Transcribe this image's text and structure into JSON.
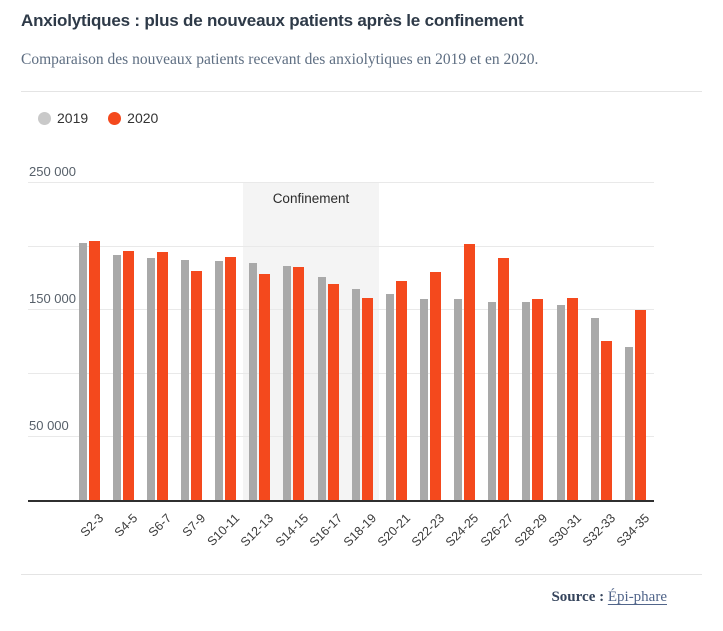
{
  "header": {
    "title": "Anxiolytiques : plus de nouveaux patients après le confinement",
    "subtitle": "Comparaison des nouveaux patients recevant des anxiolytiques en 2019 et en 2020."
  },
  "legend": [
    {
      "label": "2019",
      "color": "#c9c9c9"
    },
    {
      "label": "2020",
      "color": "#f4491d"
    }
  ],
  "chart_data": {
    "type": "bar",
    "title": "Anxiolytiques : plus de nouveaux patients après le confinement",
    "xlabel": "",
    "ylabel": "",
    "ylim": [
      0,
      250000
    ],
    "grid": true,
    "legend_position": "top-left",
    "categories": [
      "S2-3",
      "S4-5",
      "S6-7",
      "S7-9",
      "S10-11",
      "S12-13",
      "S14-15",
      "S16-17",
      "S18-19",
      "S20-21",
      "S22-23",
      "S24-25",
      "S26-27",
      "S28-29",
      "S30-31",
      "S32-33",
      "S34-35"
    ],
    "series": [
      {
        "name": "2019",
        "color": "#a9a9a9",
        "values": [
          202000,
          193000,
          190000,
          189000,
          188000,
          186000,
          184000,
          175000,
          166000,
          162000,
          158000,
          158000,
          156000,
          156000,
          153000,
          143000,
          120000
        ]
      },
      {
        "name": "2020",
        "color": "#f4491d",
        "values": [
          204000,
          196000,
          195000,
          180000,
          191000,
          178000,
          183000,
          170000,
          159000,
          172000,
          179000,
          201000,
          190000,
          158000,
          159000,
          125000,
          149000
        ]
      }
    ],
    "yticks": [
      {
        "value": 250000,
        "label": "250 000"
      },
      {
        "value": 200000,
        "label": ""
      },
      {
        "value": 150000,
        "label": "150 000"
      },
      {
        "value": 100000,
        "label": ""
      },
      {
        "value": 50000,
        "label": "50 000"
      }
    ],
    "annotation": {
      "label": "Confinement",
      "from_category": "S12-13",
      "to_category": "S18-19",
      "band_color": "#f4f4f4"
    }
  },
  "footer": {
    "source_label": "Source :",
    "source_link": "Épi-phare"
  }
}
